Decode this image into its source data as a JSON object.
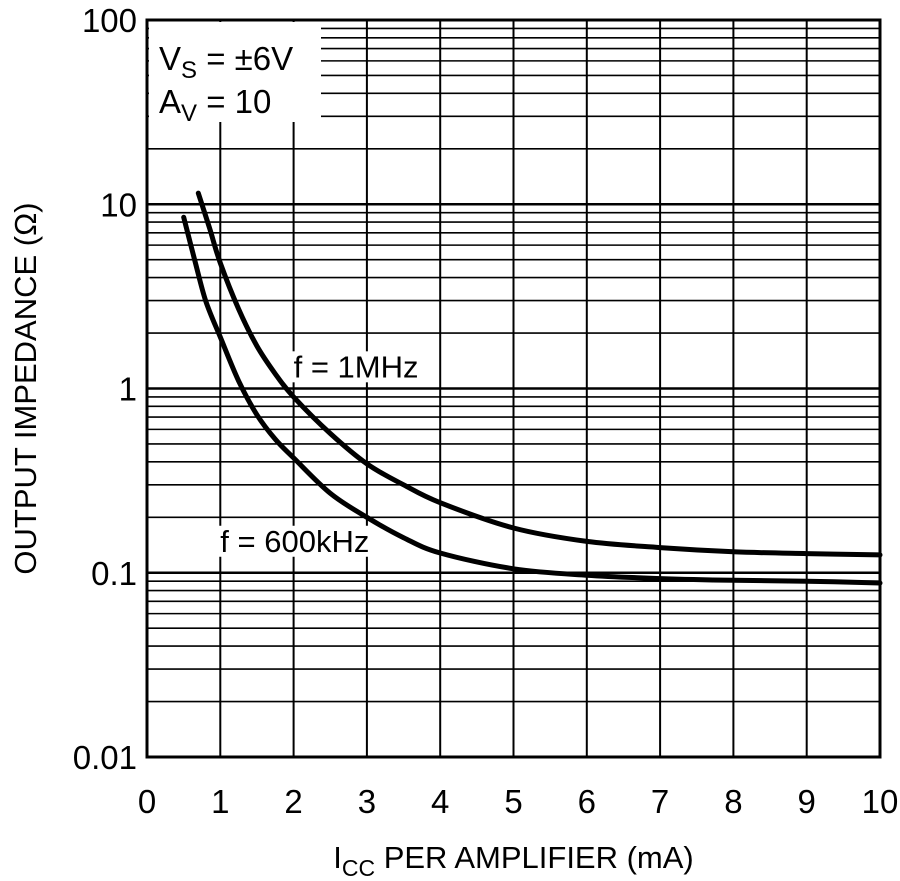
{
  "chart_data": {
    "type": "line",
    "xlabel_main": "I",
    "xlabel_sub": "CC",
    "xlabel_rest": " PER AMPLIFIER (mA)",
    "ylabel": "OUTPUT IMPEDANCE (Ω)",
    "xlim": [
      0,
      10
    ],
    "ylim": [
      0.01,
      100
    ],
    "yscale": "log",
    "grid": true,
    "x_ticks": [
      "0",
      "1",
      "2",
      "3",
      "4",
      "5",
      "6",
      "7",
      "8",
      "9",
      "10"
    ],
    "y_ticks": [
      {
        "value": 100,
        "label": "100"
      },
      {
        "value": 10,
        "label": "10"
      },
      {
        "value": 1,
        "label": "1"
      },
      {
        "value": 0.1,
        "label": "0.1"
      },
      {
        "value": 0.01,
        "label": "0.01"
      }
    ],
    "conditions": {
      "vs_main": "V",
      "vs_sub": "S",
      "vs_rest": " = ±6V",
      "av_main": "A",
      "av_sub": "V",
      "av_rest": " = 10"
    },
    "series": [
      {
        "name": "f = 1MHz",
        "x": [
          0.7,
          0.85,
          1.0,
          1.25,
          1.5,
          1.75,
          2.0,
          2.5,
          3.0,
          3.5,
          4.0,
          5.0,
          6.0,
          7.0,
          8.0,
          9.0,
          10.0
        ],
        "y": [
          11.5,
          7.5,
          4.8,
          2.7,
          1.7,
          1.2,
          0.9,
          0.57,
          0.39,
          0.3,
          0.24,
          0.175,
          0.148,
          0.137,
          0.13,
          0.127,
          0.125
        ]
      },
      {
        "name": "f = 600kHz",
        "x": [
          0.5,
          0.65,
          0.8,
          1.0,
          1.25,
          1.5,
          1.75,
          2.0,
          2.5,
          3.0,
          3.5,
          4.0,
          5.0,
          6.0,
          7.0,
          8.0,
          9.0,
          10.0
        ],
        "y": [
          8.5,
          5.0,
          3.0,
          1.9,
          1.1,
          0.72,
          0.53,
          0.42,
          0.27,
          0.2,
          0.155,
          0.128,
          0.105,
          0.097,
          0.093,
          0.091,
          0.09,
          0.088
        ]
      }
    ],
    "curve_labels": [
      {
        "series": 0,
        "x": 2.0,
        "y": 1.15
      },
      {
        "series": 1,
        "x": 1.0,
        "y": 0.13
      }
    ]
  }
}
